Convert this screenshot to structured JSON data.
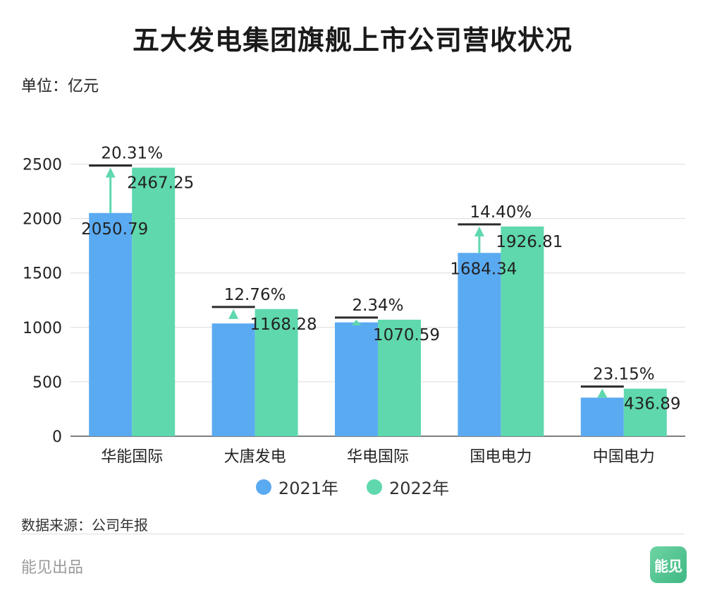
{
  "title": "五大发电集团旗舰上市公司营收状况",
  "unit": "单位：亿元",
  "source": "数据来源：公司年报",
  "publisher": "能见出品",
  "brand_badge": "能见",
  "chart_data": {
    "type": "bar",
    "categories": [
      "华能国际",
      "大唐发电",
      "华电国际",
      "国电电力",
      "中国电力"
    ],
    "series": [
      {
        "name": "2021年",
        "color": "#5aaaf2",
        "values": [
          2050.79,
          1036.1,
          1046.1,
          1684.34,
          354.75
        ]
      },
      {
        "name": "2022年",
        "color": "#5fd8ad",
        "values": [
          2467.25,
          1168.28,
          1070.59,
          1926.81,
          436.89
        ]
      }
    ],
    "value_labels_2021": [
      "2050.79",
      "",
      "",
      "1684.34",
      ""
    ],
    "value_labels_2022": [
      "2467.25",
      "1168.28",
      "1070.59",
      "1926.81",
      "436.89"
    ],
    "growth": [
      "20.31%",
      "12.76%",
      "2.34%",
      "14.40%",
      "23.15%"
    ],
    "ylim": [
      0,
      2600
    ],
    "yticks": [
      0,
      500,
      1000,
      1500,
      2000,
      2500
    ],
    "grid": true,
    "legend": "bottom",
    "marker_color": "#2b2b2b",
    "arrow_color": "#5fd8ad",
    "grid_color": "#dcdcdc"
  }
}
